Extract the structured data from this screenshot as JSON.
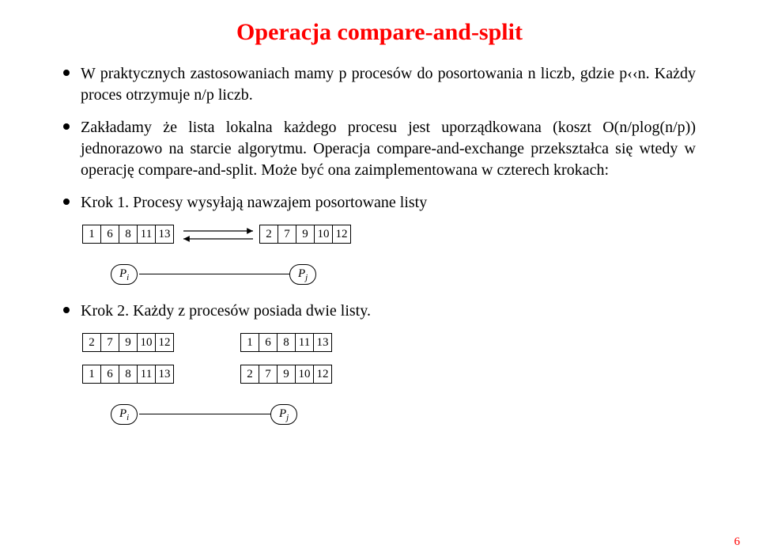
{
  "title": {
    "text": "Operacja compare-and-split",
    "color": "#ff0000",
    "fontsize": 30
  },
  "body_fontsize": 20,
  "bullets": {
    "b1": "W praktycznych zastosowaniach mamy p procesów do posortowania n liczb, gdzie p‹‹n. Każdy proces otrzymuje n/p liczb.",
    "b2": "Zakładamy że lista lokalna każdego procesu jest uporządkowana (koszt O(n/plog(n/p)) jednorazowo na starcie algorytmu. Operacja compare-and-exchange przekształca się wtedy w operację compare-and-split. Może być ona zaimplementowana w czterech krokach:",
    "b3": "Krok 1. Procesy wysyłają nawzajem posortowane listy",
    "b4": "Krok 2. Każdy z procesów posiada dwie listy."
  },
  "figures": {
    "cell_fontsize": 15,
    "proc_fontsize": 15,
    "fig1": {
      "arrays": {
        "left": [
          "1",
          "6",
          "8",
          "11",
          "13"
        ],
        "right": [
          "2",
          "7",
          "9",
          "10",
          "12"
        ]
      },
      "procs": {
        "left_html": "P<sub>i</sub>",
        "right_html": "P<sub>j</sub>"
      },
      "arrow_color": "#000000"
    },
    "fig2": {
      "arrays": {
        "left_top": [
          "2",
          "7",
          "9",
          "10",
          "12"
        ],
        "left_bottom": [
          "1",
          "6",
          "8",
          "11",
          "13"
        ],
        "right_top": [
          "1",
          "6",
          "8",
          "11",
          "13"
        ],
        "right_bottom": [
          "2",
          "7",
          "9",
          "10",
          "12"
        ]
      },
      "procs": {
        "left_html": "P<sub>i</sub>",
        "right_html": "P<sub>j</sub>"
      }
    }
  },
  "page_number": {
    "text": "6",
    "color": "#ff0000",
    "fontsize": 15
  }
}
